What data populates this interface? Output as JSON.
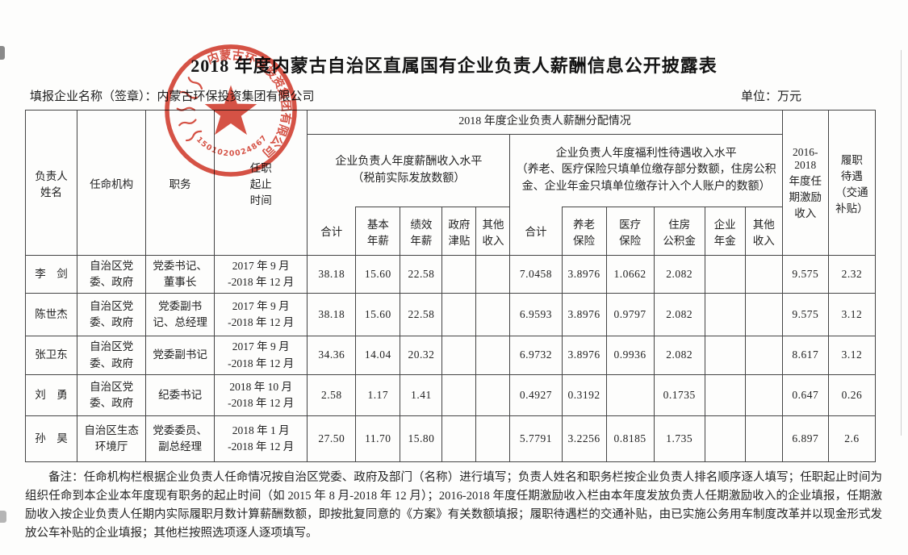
{
  "document": {
    "title": "2018 年度内蒙古自治区直属国有企业负责人薪酬信息公开披露表",
    "company_line": "填报企业名称（签章）：内蒙古环保投资集团有限公司",
    "unit_label": "单位：万元",
    "notes": "备注：任命机构栏根据企业负责人任命情况按自治区党委、政府及部门（名称）进行填写；负责人姓名和职务栏按企业负责人排名顺序逐人填写；任职起止时间为组织任命到本企业本年度现有职务的起止时间（如 2015 年 8 月-2018 年 12 月）；2016-2018 年度任期激励收入栏由本年度发放负责人任期激励收入的企业填报，任期激励收入按企业负责人任期内实际履职月数计算薪酬数额，即按批复同意的《方案》有关数额填报；履职待遇栏的交通补贴，由已实施公务用车制度改革并以现金形式发放公车补贴的企业填报；其他栏按照选项逐人逐项填写。"
  },
  "stamp": {
    "company": "内蒙古环保投资集团有限公司",
    "number": "1501020024867",
    "color": "#d23a2c"
  },
  "table": {
    "header": {
      "name": "负责人\n姓名",
      "agency": "任命机构",
      "position": "职务",
      "term": "任职\n起止\n时间",
      "distribution_group": "2018 年度企业负责人薪酬分配情况",
      "salary_group": "企业负责人年度薪酬收入水平\n（税前实际发放数额）",
      "welfare_group": "企业负责人年度福利性待遇收入水平\n（养老、医疗保险只填单位缴存部分数额，住房公积金、企业年金只填单位缴存计入个人账户的数额）",
      "salary_total": "合计",
      "base_salary": "基本\n年薪",
      "performance_salary": "绩效\n年薪",
      "gov_allowance": "政府\n津贴",
      "other_income1": "其他\n收入",
      "welfare_total": "合计",
      "pension": "养老\n保险",
      "medical": "医疗\n保险",
      "housing_fund": "住房\n公积金",
      "annuity": "企业\n年金",
      "other_income2": "其他\n收入",
      "incentive": "2016-\n2018\n年度任\n期激励\n收入",
      "duty_benefit": "履职\n待遇\n（交通\n补贴）"
    },
    "rows": [
      {
        "cells": [
          "李　剑",
          "自治区党\n委、政府",
          "党委书记、\n董事长",
          "2017 年 9 月\n-2018 年 12 月",
          "38.18",
          "15.60",
          "22.58",
          "",
          "",
          "7.0458",
          "3.8976",
          "1.0662",
          "2.082",
          "",
          "",
          "9.575",
          "2.32"
        ]
      },
      {
        "cells": [
          "陈世杰",
          "自治区党\n委、政府",
          "党委副书\n记、总经理",
          "2017 年 9 月\n-2018 年 12 月",
          "38.18",
          "15.60",
          "22.58",
          "",
          "",
          "6.9593",
          "3.8976",
          "0.9797",
          "2.082",
          "",
          "",
          "9.575",
          "3.12"
        ]
      },
      {
        "cells": [
          "张卫东",
          "自治区党\n委、政府",
          "党委副书记",
          "2017 年 9 月\n-2018 年 12 月",
          "34.36",
          "14.04",
          "20.32",
          "",
          "",
          "6.9732",
          "3.8976",
          "0.9936",
          "2.082",
          "",
          "",
          "8.617",
          "3.12"
        ]
      },
      {
        "cells": [
          "刘　勇",
          "自治区党\n委、政府",
          "纪委书记",
          "2018 年 10 月\n-2018 年 12 月",
          "2.58",
          "1.17",
          "1.41",
          "",
          "",
          "0.4927",
          "0.3192",
          "",
          "0.1735",
          "",
          "",
          "0.647",
          "0.26"
        ]
      },
      {
        "cells": [
          "孙　昊",
          "自治区生态\n环境厅",
          "党委委员、\n副总经理",
          "2018 年 1 月\n-2018 年 12 月",
          "27.50",
          "11.70",
          "15.80",
          "",
          "",
          "5.7791",
          "3.2256",
          "0.8185",
          "1.735",
          "",
          "",
          "6.897",
          "2.6"
        ]
      }
    ]
  }
}
